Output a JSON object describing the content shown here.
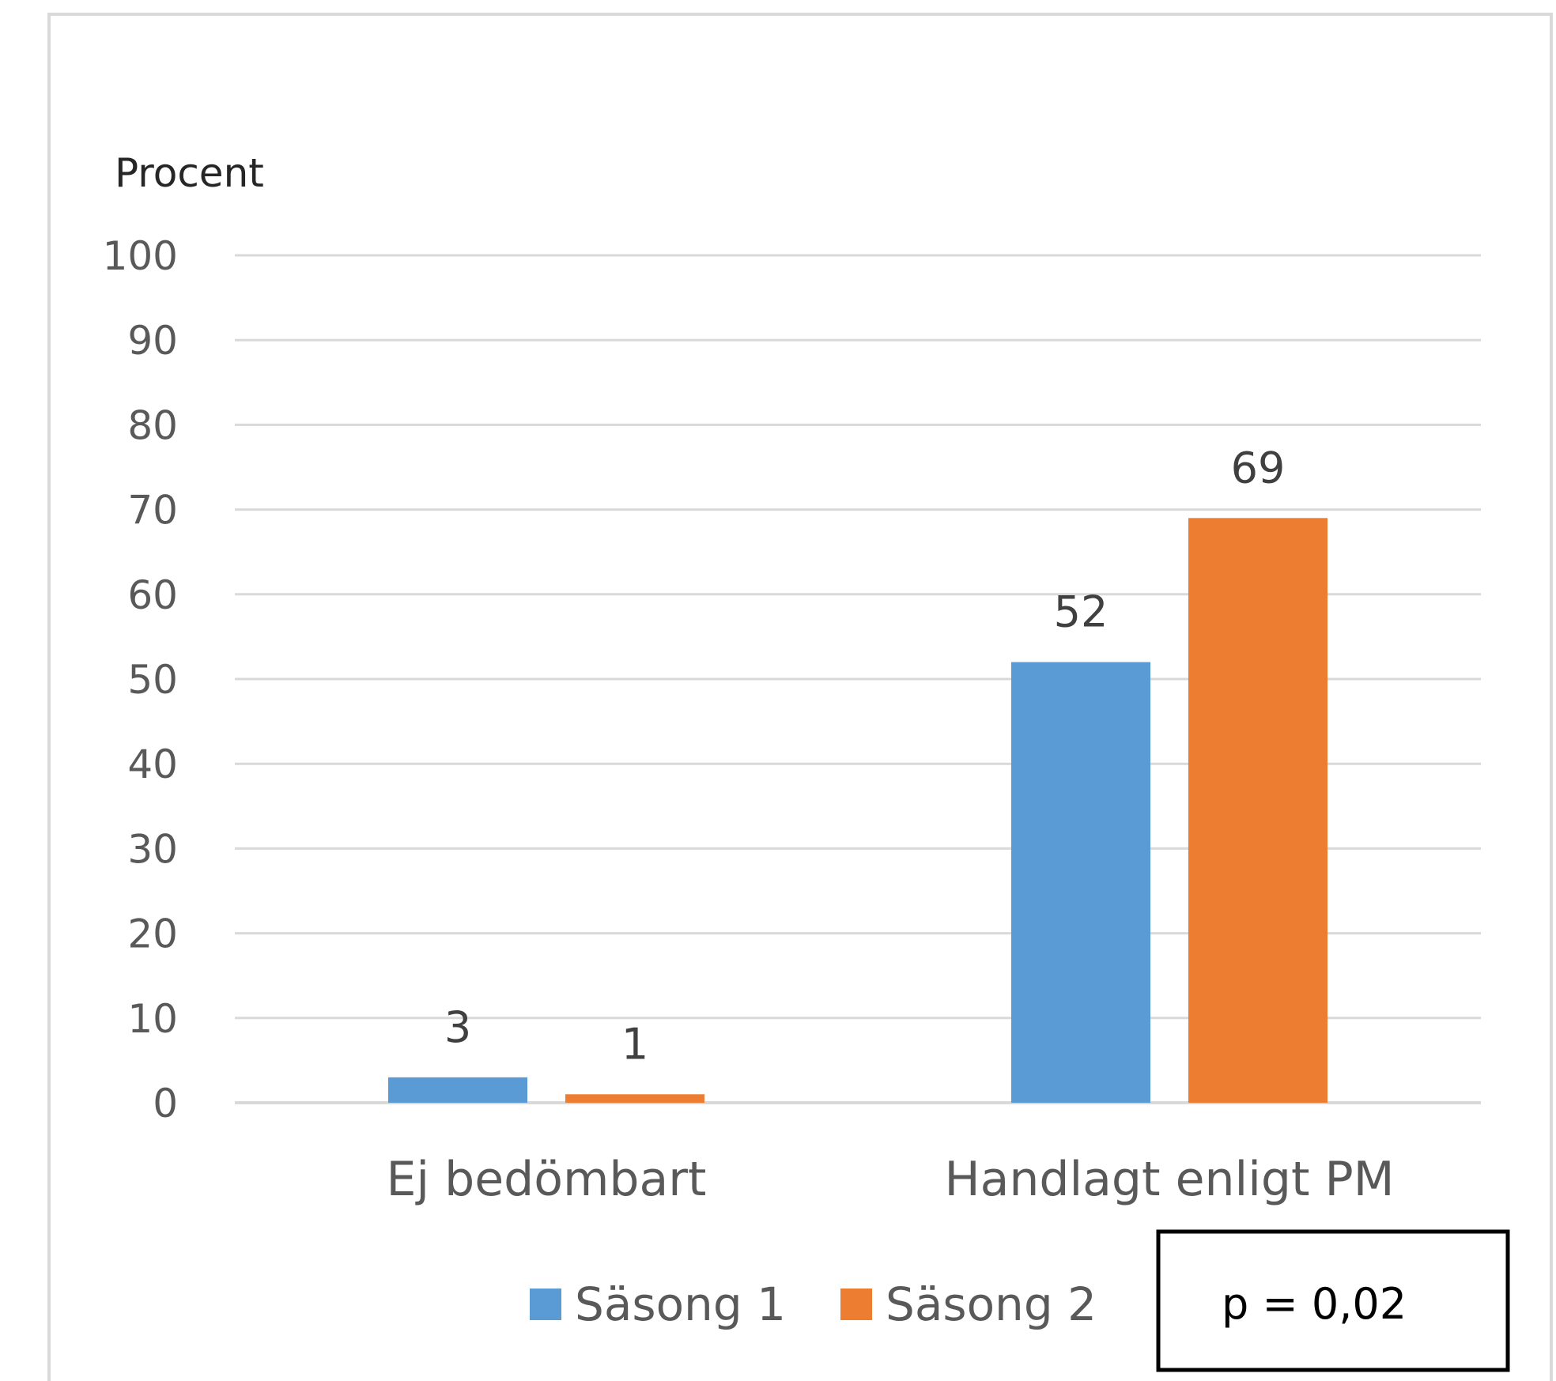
{
  "chart_data": {
    "type": "bar",
    "ylabel": "Procent",
    "ylim": [
      0,
      100
    ],
    "yticks": [
      0,
      10,
      20,
      30,
      40,
      50,
      60,
      70,
      80,
      90,
      100
    ],
    "categories": [
      "Ej bedömbart",
      "Handlagt enligt PM"
    ],
    "series": [
      {
        "name": "Säsong 1",
        "values": [
          3,
          52
        ],
        "color": "#5B9BD5"
      },
      {
        "name": "Säsong 2",
        "values": [
          1,
          69
        ],
        "color": "#ED7D31"
      }
    ],
    "data_labels": true,
    "grid": true,
    "legend": "bottom",
    "annotation": "p = 0,02",
    "colors": {
      "grid": "#D9D9D9",
      "frame": "#D9D9D9",
      "box_border": "#000000"
    }
  }
}
